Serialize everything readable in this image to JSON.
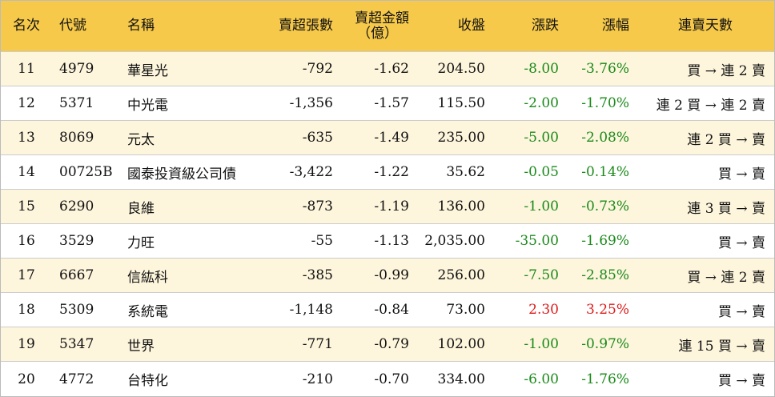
{
  "table": {
    "headers": [
      "名次",
      "代號",
      "名稱",
      "賣超張數",
      [
        "賣超金額",
        "（億）"
      ],
      "收盤",
      "漲跌",
      "漲幅",
      "連賣天數"
    ],
    "rows": [
      [
        "11",
        "4979",
        "華星光",
        "-792",
        "-1.62",
        "204.50",
        "-8.00",
        "-3.76%",
        "買 → 連 2 賣"
      ],
      [
        "12",
        "5371",
        "中光電",
        "-1,356",
        "-1.57",
        "115.50",
        "-2.00",
        "-1.70%",
        "連 2 買 → 連 2 賣"
      ],
      [
        "13",
        "8069",
        "元太",
        "-635",
        "-1.49",
        "235.00",
        "-5.00",
        "-2.08%",
        "連 2 買 → 賣"
      ],
      [
        "14",
        "00725B",
        "國泰投資級公司債",
        "-3,422",
        "-1.22",
        "35.62",
        "-0.05",
        "-0.14%",
        "買 → 賣"
      ],
      [
        "15",
        "6290",
        "良維",
        "-873",
        "-1.19",
        "136.00",
        "-1.00",
        "-0.73%",
        "連 3 買 → 賣"
      ],
      [
        "16",
        "3529",
        "力旺",
        "-55",
        "-1.13",
        "2,035.00",
        "-35.00",
        "-1.69%",
        "買 → 賣"
      ],
      [
        "17",
        "6667",
        "信紘科",
        "-385",
        "-0.99",
        "256.00",
        "-7.50",
        "-2.85%",
        "買 → 連 2 賣"
      ],
      [
        "18",
        "5309",
        "系統電",
        "-1,148",
        "-0.84",
        "73.00",
        "2.30",
        "3.25%",
        "買 → 賣"
      ],
      [
        "19",
        "5347",
        "世界",
        "-771",
        "-0.79",
        "102.00",
        "-1.00",
        "-0.97%",
        "連 15 買 → 賣"
      ],
      [
        "20",
        "4772",
        "台特化",
        "-210",
        "-0.70",
        "334.00",
        "-6.00",
        "-1.76%",
        "買 → 賣"
      ]
    ]
  }
}
